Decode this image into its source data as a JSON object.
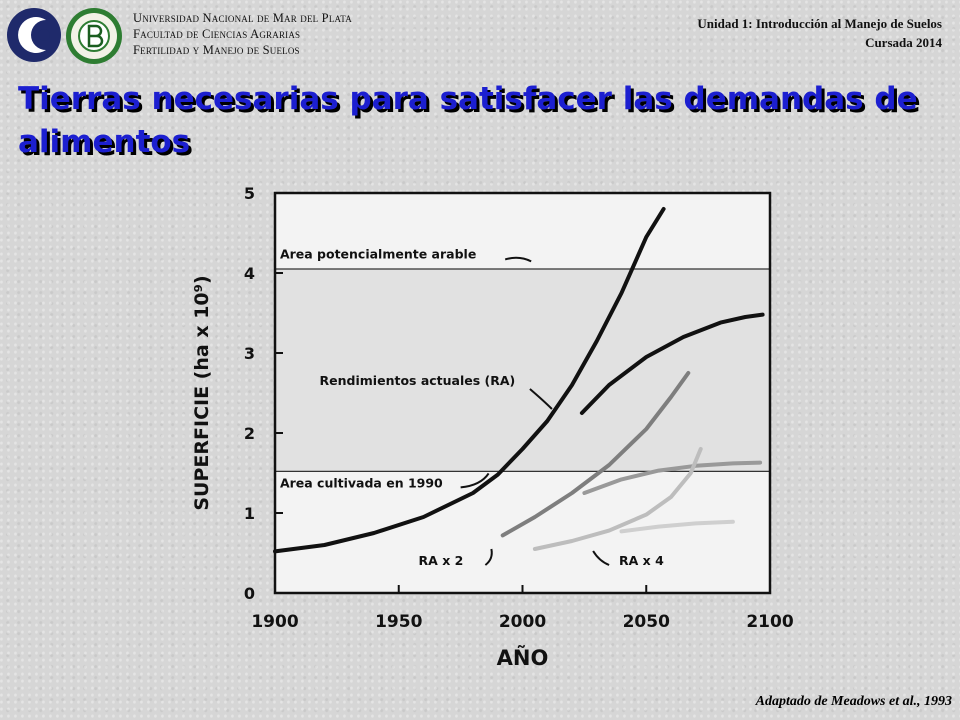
{
  "header": {
    "university_lines": [
      "Universidad Nacional de Mar del Plata",
      "Facultad de Ciencias Agrarias",
      "Fertilidad y Manejo de Suelos"
    ],
    "unit_line1": "Unidad 1: Introducción al Manejo de Suelos",
    "unit_line2": "Cursada 2014",
    "logo_left_icon": "unmdp-logo-icon",
    "logo_right_icon": "fca-seal-icon"
  },
  "slide": {
    "title": "Tierras necesarias para satisfacer las demandas de alimentos",
    "title_color": "#1c1fd0",
    "source": "Adaptado de Meadows et al., 1993"
  },
  "chart_data": {
    "type": "line",
    "title": "",
    "xlabel": "AÑO",
    "ylabel": "SUPERFICIE (ha x 10⁹)",
    "xlim": [
      1900,
      2100
    ],
    "ylim": [
      0,
      5
    ],
    "x_ticks": [
      1900,
      1950,
      2000,
      2050,
      2100
    ],
    "y_ticks": [
      0,
      1,
      2,
      3,
      4,
      5
    ],
    "bands": [
      {
        "label": "Area potencialmente arable",
        "y": 4.05
      },
      {
        "label": "Area cultivada en 1990",
        "y": 1.52
      }
    ],
    "series": [
      {
        "name": "Rendimientos actuales (RA)",
        "color": "#111111",
        "width": 4,
        "points": [
          [
            1900,
            0.52
          ],
          [
            1920,
            0.6
          ],
          [
            1940,
            0.75
          ],
          [
            1960,
            0.95
          ],
          [
            1980,
            1.25
          ],
          [
            1990,
            1.48
          ],
          [
            2000,
            1.8
          ],
          [
            2010,
            2.15
          ],
          [
            2020,
            2.6
          ],
          [
            2030,
            3.15
          ],
          [
            2040,
            3.75
          ],
          [
            2050,
            4.45
          ],
          [
            2057,
            4.8
          ]
        ]
      },
      {
        "name": "",
        "color": "#111111",
        "width": 4,
        "points": [
          [
            2024,
            2.25
          ],
          [
            2035,
            2.6
          ],
          [
            2050,
            2.95
          ],
          [
            2065,
            3.2
          ],
          [
            2080,
            3.38
          ],
          [
            2090,
            3.45
          ],
          [
            2097,
            3.48
          ]
        ]
      },
      {
        "name": "RA x 2",
        "color": "#7e7e7e",
        "width": 4,
        "points": [
          [
            1992,
            0.72
          ],
          [
            2005,
            0.95
          ],
          [
            2020,
            1.25
          ],
          [
            2035,
            1.6
          ],
          [
            2050,
            2.05
          ],
          [
            2060,
            2.45
          ],
          [
            2067,
            2.75
          ]
        ]
      },
      {
        "name": "",
        "color": "#999999",
        "width": 4,
        "points": [
          [
            2025,
            1.25
          ],
          [
            2040,
            1.42
          ],
          [
            2055,
            1.53
          ],
          [
            2070,
            1.59
          ],
          [
            2085,
            1.62
          ],
          [
            2096,
            1.63
          ]
        ]
      },
      {
        "name": "RA x 4",
        "color": "#bdbdbd",
        "width": 4,
        "points": [
          [
            2005,
            0.55
          ],
          [
            2020,
            0.65
          ],
          [
            2035,
            0.78
          ],
          [
            2050,
            0.98
          ],
          [
            2060,
            1.2
          ],
          [
            2068,
            1.5
          ],
          [
            2072,
            1.8
          ]
        ]
      },
      {
        "name": "",
        "color": "#cfcfcf",
        "width": 4,
        "points": [
          [
            2040,
            0.77
          ],
          [
            2055,
            0.83
          ],
          [
            2070,
            0.87
          ],
          [
            2085,
            0.89
          ]
        ]
      }
    ],
    "annotations": [
      {
        "text": "Area potencialmente arable",
        "x": 1902,
        "y": 4.18
      },
      {
        "text": "Rendimientos actuales (RA)",
        "x": 1918,
        "y": 2.6
      },
      {
        "text": "Area cultivada en 1990",
        "x": 1902,
        "y": 1.32
      },
      {
        "text": "RA x 2",
        "x": 1958,
        "y": 0.35
      },
      {
        "text": "RA x 4",
        "x": 2039,
        "y": 0.35
      }
    ]
  }
}
